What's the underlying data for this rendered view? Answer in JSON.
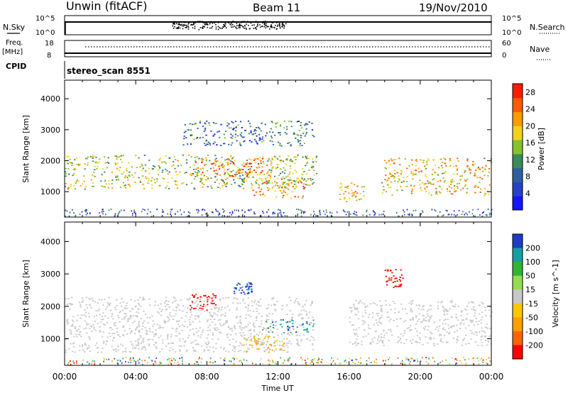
{
  "header": {
    "radar": "Unwin (fitACF)",
    "beam": "Beam 11",
    "date": "19/Nov/2010"
  },
  "noise_panel": {
    "left_label": "N.Sky",
    "left_ticks": [
      "10^5",
      "10^0"
    ],
    "right_label": "N.Search",
    "right_ticks": [
      "10^5",
      "10^0"
    ]
  },
  "freq_panel": {
    "left_label_1": "Freq.",
    "left_label_2": "[MHz]",
    "left_ticks": [
      "18",
      "8"
    ],
    "right_label": "Nave",
    "right_ticks": [
      "60",
      "0"
    ]
  },
  "cpid": {
    "label": "CPID",
    "value": "stereo_scan 8551"
  },
  "colors": {
    "power_scale": [
      "#1414ff",
      "#2840c8",
      "#2f5f9f",
      "#3a8a5a",
      "#86c22a",
      "#f0d21e",
      "#ff9a00",
      "#ff5a00",
      "#ff1a00"
    ],
    "velocity_scale": [
      "#ff0000",
      "#ff6400",
      "#ffa000",
      "#f7c900",
      "#c8c8c8",
      "#96dc50",
      "#32b432",
      "#14a0a0",
      "#1e3cc8"
    ],
    "ground_scatter": "#c8c8c8"
  },
  "chart_data": [
    {
      "type": "heatmap",
      "panel": "power",
      "xlabel": "Time UT",
      "ylabel": "Slant Range [km]",
      "x_ticks": [
        "00:00",
        "04:00",
        "08:00",
        "12:00",
        "16:00",
        "20:00",
        "00:00"
      ],
      "x_range_hours": [
        0,
        24
      ],
      "y_range": [
        180,
        4600
      ],
      "y_ticks": [
        1000,
        2000,
        3000,
        4000
      ],
      "colorbar": {
        "label": "Power [dB]",
        "ticks": [
          4,
          8,
          12,
          16,
          20,
          24,
          28
        ],
        "range": [
          0,
          30
        ]
      },
      "echo_regions": [
        {
          "t_start": 0.0,
          "t_end": 14.2,
          "range_low": 1100,
          "range_high": 2200,
          "power": 16
        },
        {
          "t_start": 7.0,
          "t_end": 11.5,
          "range_low": 1500,
          "range_high": 2100,
          "power": 26
        },
        {
          "t_start": 10.5,
          "t_end": 13.5,
          "range_low": 800,
          "range_high": 1400,
          "power": 22
        },
        {
          "t_start": 15.4,
          "t_end": 16.8,
          "range_low": 700,
          "range_high": 1300,
          "power": 20
        },
        {
          "t_start": 17.8,
          "t_end": 24.0,
          "range_low": 900,
          "range_high": 2100,
          "power": 20
        },
        {
          "t_start": 6.5,
          "t_end": 14.0,
          "range_low": 2500,
          "range_high": 3300,
          "power": 8
        }
      ]
    },
    {
      "type": "heatmap",
      "panel": "velocity",
      "xlabel": "Time UT",
      "ylabel": "Slant Range [km]",
      "x_ticks": [
        "00:00",
        "04:00",
        "08:00",
        "12:00",
        "16:00",
        "20:00",
        "00:00"
      ],
      "x_range_hours": [
        0,
        24
      ],
      "y_range": [
        180,
        4600
      ],
      "y_ticks": [
        1000,
        2000,
        3000,
        4000
      ],
      "colorbar": {
        "label": "Velocity [m s^-1]",
        "ticks": [
          200,
          100,
          50,
          15,
          -15,
          -50,
          -100,
          -200
        ]
      },
      "echo_regions": [
        {
          "t_start": 0.0,
          "t_end": 14.0,
          "range_low": 600,
          "range_high": 2300,
          "velocity": "ground scatter"
        },
        {
          "t_start": 7.0,
          "t_end": 8.5,
          "range_low": 1900,
          "range_high": 2400,
          "velocity": -200
        },
        {
          "t_start": 9.5,
          "t_end": 10.5,
          "range_low": 2400,
          "range_high": 2800,
          "velocity": 200
        },
        {
          "t_start": 11.0,
          "t_end": 14.0,
          "range_low": 1200,
          "range_high": 1600,
          "velocity": 80
        },
        {
          "t_start": 10.0,
          "t_end": 12.5,
          "range_low": 600,
          "range_high": 1100,
          "velocity": -50
        },
        {
          "t_start": 18.0,
          "t_end": 19.0,
          "range_low": 2600,
          "range_high": 3200,
          "velocity": -200
        },
        {
          "t_start": 16.0,
          "t_end": 24.0,
          "range_low": 800,
          "range_high": 2200,
          "velocity": "ground scatter"
        }
      ]
    }
  ],
  "noise_series": {
    "sky_level": 4.5,
    "search_level": 4.6
  },
  "freq_series": {
    "freq_mhz": 11.2,
    "nave": 20
  }
}
